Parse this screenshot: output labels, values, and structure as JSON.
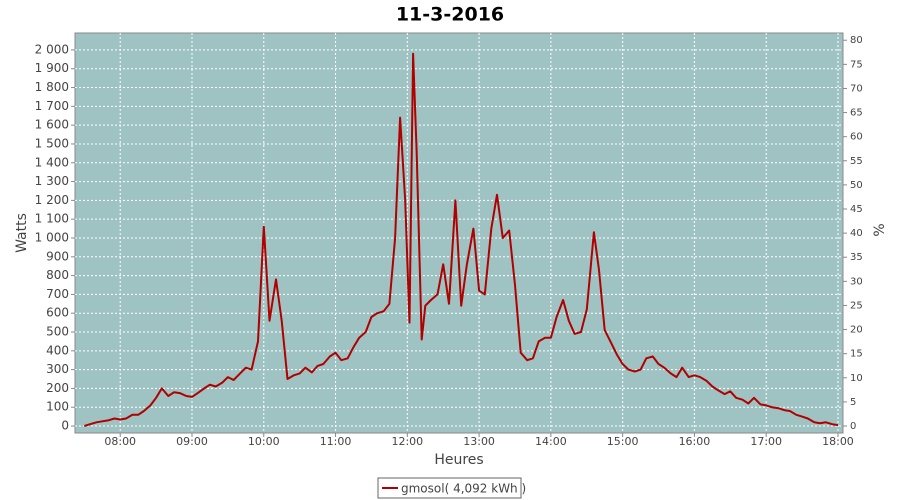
{
  "chart_data": {
    "type": "line",
    "title": "11-3-2016",
    "xlabel": "Heures",
    "ylabel": "Watts",
    "y2label": "%",
    "xlim": [
      7.37,
      18.07
    ],
    "xticks": [
      {
        "value": 8,
        "label": "08:00"
      },
      {
        "value": 9,
        "label": "09:00"
      },
      {
        "value": 10,
        "label": "10:00"
      },
      {
        "value": 11,
        "label": "11:00"
      },
      {
        "value": 12,
        "label": "12:00"
      },
      {
        "value": 13,
        "label": "13:00"
      },
      {
        "value": 14,
        "label": "14:00"
      },
      {
        "value": 15,
        "label": "15:00"
      },
      {
        "value": 16,
        "label": "16:00"
      },
      {
        "value": 17,
        "label": "17:00"
      },
      {
        "value": 18,
        "label": "18:00"
      }
    ],
    "ylim": [
      -37,
      2090
    ],
    "yticks": [
      0,
      100,
      200,
      300,
      400,
      500,
      600,
      700,
      800,
      900,
      {
        "value": 1000,
        "label": "1 000"
      },
      {
        "value": 1100,
        "label": "1 100"
      },
      {
        "value": 1200,
        "label": "1 200"
      },
      {
        "value": 1300,
        "label": "1 300"
      },
      {
        "value": 1400,
        "label": "1 400"
      },
      {
        "value": 1500,
        "label": "1 500"
      },
      {
        "value": 1600,
        "label": "1 600"
      },
      {
        "value": 1700,
        "label": "1 700"
      },
      {
        "value": 1800,
        "label": "1 800"
      },
      {
        "value": 1900,
        "label": "1 900"
      },
      {
        "value": 2000,
        "label": "2 000"
      }
    ],
    "y2lim": [
      -1.45,
      81.5
    ],
    "y2ticks": [
      0,
      5,
      10,
      15,
      20,
      25,
      30,
      35,
      40,
      45,
      50,
      55,
      60,
      65,
      70,
      75,
      80
    ],
    "grid": true,
    "legend": "bottom",
    "x": [
      7.5,
      7.58,
      7.67,
      7.75,
      7.83,
      7.92,
      8.0,
      8.08,
      8.17,
      8.25,
      8.33,
      8.42,
      8.5,
      8.58,
      8.67,
      8.75,
      8.83,
      8.92,
      9.0,
      9.08,
      9.17,
      9.25,
      9.33,
      9.42,
      9.5,
      9.58,
      9.67,
      9.75,
      9.83,
      9.92,
      10.0,
      10.08,
      10.17,
      10.25,
      10.33,
      10.42,
      10.5,
      10.58,
      10.67,
      10.75,
      10.83,
      10.92,
      11.0,
      11.08,
      11.17,
      11.25,
      11.33,
      11.42,
      11.5,
      11.58,
      11.67,
      11.75,
      11.83,
      11.9,
      11.97,
      12.03,
      12.08,
      12.13,
      12.2,
      12.25,
      12.33,
      12.42,
      12.5,
      12.58,
      12.67,
      12.75,
      12.83,
      12.92,
      13.0,
      13.08,
      13.17,
      13.25,
      13.33,
      13.42,
      13.5,
      13.58,
      13.67,
      13.75,
      13.83,
      13.92,
      14.0,
      14.08,
      14.17,
      14.25,
      14.33,
      14.42,
      14.5,
      14.6,
      14.67,
      14.75,
      14.83,
      14.92,
      15.0,
      15.08,
      15.17,
      15.25,
      15.33,
      15.42,
      15.5,
      15.58,
      15.67,
      15.75,
      15.83,
      15.92,
      16.0,
      16.08,
      16.17,
      16.25,
      16.33,
      16.42,
      16.5,
      16.58,
      16.67,
      16.75,
      16.83,
      16.92,
      17.0,
      17.08,
      17.17,
      17.25,
      17.33,
      17.42,
      17.5,
      17.58,
      17.67,
      17.75,
      17.83,
      17.92,
      18.0
    ],
    "series": [
      {
        "name": "gmosol( 4,092 kWh )",
        "color": "#b00000",
        "values": [
          0,
          10,
          20,
          25,
          30,
          40,
          35,
          40,
          60,
          60,
          80,
          110,
          150,
          200,
          160,
          180,
          175,
          160,
          155,
          175,
          200,
          220,
          210,
          230,
          260,
          245,
          280,
          310,
          300,
          450,
          1060,
          560,
          780,
          560,
          250,
          270,
          280,
          310,
          285,
          320,
          330,
          370,
          390,
          350,
          360,
          420,
          470,
          500,
          580,
          600,
          610,
          650,
          1000,
          1640,
          1200,
          550,
          1980,
          1450,
          460,
          640,
          670,
          700,
          860,
          650,
          1200,
          640,
          860,
          1050,
          720,
          700,
          1050,
          1230,
          1000,
          1040,
          750,
          390,
          350,
          360,
          450,
          470,
          470,
          580,
          670,
          560,
          490,
          500,
          620,
          1030,
          830,
          510,
          450,
          380,
          330,
          300,
          290,
          300,
          360,
          370,
          330,
          310,
          280,
          260,
          310,
          260,
          270,
          260,
          240,
          210,
          190,
          170,
          185,
          150,
          140,
          120,
          150,
          115,
          110,
          100,
          95,
          85,
          80,
          60,
          50,
          40,
          20,
          15,
          20,
          10,
          5
        ]
      }
    ]
  }
}
